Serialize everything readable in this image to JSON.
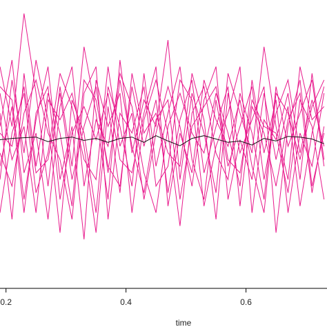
{
  "chart_data": {
    "type": "line",
    "title": "",
    "xlabel": "time",
    "ylabel": "",
    "xlim": [
      0.19,
      0.735
    ],
    "ylim": [
      -1.0,
      1.0
    ],
    "x_ticks": [
      {
        "value": 0.2,
        "label": "0.2"
      },
      {
        "value": 0.4,
        "label": "0.4"
      },
      {
        "value": 0.6,
        "label": "0.6"
      }
    ],
    "grid": false,
    "legend": "none",
    "colors": {
      "trajectories": "#e8198c",
      "mean": "#111111",
      "axis": "#000000"
    },
    "x": [
      0.19,
      0.21,
      0.23,
      0.25,
      0.27,
      0.29,
      0.31,
      0.33,
      0.35,
      0.37,
      0.39,
      0.41,
      0.43,
      0.45,
      0.47,
      0.49,
      0.51,
      0.53,
      0.55,
      0.57,
      0.59,
      0.61,
      0.63,
      0.65,
      0.67,
      0.69,
      0.71,
      0.73
    ],
    "series": [
      {
        "values": [
          0.55,
          0.1,
          0.95,
          0.35,
          -0.35,
          0.4,
          -0.2,
          0.7,
          0.2,
          -0.45,
          0.6,
          -0.1,
          0.3,
          0.1,
          0.75,
          -0.3,
          0.35,
          0.05,
          -0.4,
          0.5,
          0.2,
          -0.1,
          0.7,
          0.1,
          -0.3,
          0.55,
          0.15,
          0.25
        ]
      },
      {
        "values": [
          -0.3,
          0.45,
          -0.1,
          0.6,
          0.15,
          -0.7,
          0.3,
          0.05,
          -0.55,
          0.4,
          0.1,
          -0.35,
          0.5,
          -0.2,
          0.2,
          0.55,
          -0.15,
          -0.45,
          0.3,
          -0.2,
          0.1,
          0.4,
          -0.3,
          0.2,
          0.45,
          -0.1,
          0.3,
          -0.05
        ]
      },
      {
        "values": [
          0.2,
          -0.6,
          0.5,
          -0.2,
          0.35,
          0.05,
          -0.5,
          0.45,
          0.3,
          -0.2,
          -0.35,
          0.4,
          -0.05,
          0.3,
          -0.4,
          0.15,
          0.45,
          -0.25,
          0.1,
          0.4,
          -0.5,
          0.25,
          0.05,
          -0.35,
          0.15,
          0.35,
          -0.4,
          0.1
        ]
      },
      {
        "values": [
          0.4,
          0.3,
          -0.45,
          0.15,
          0.55,
          -0.3,
          0.1,
          -0.75,
          0.45,
          0.1,
          0.35,
          -0.55,
          0.15,
          0.45,
          0.05,
          -0.65,
          0.2,
          0.4,
          -0.1,
          -0.3,
          0.35,
          0.05,
          -0.45,
          0.4,
          -0.05,
          0.2,
          0.45,
          -0.2
        ]
      },
      {
        "values": [
          -0.55,
          0.05,
          0.35,
          -0.4,
          -0.1,
          0.5,
          0.25,
          -0.15,
          -0.3,
          0.55,
          -0.05,
          0.2,
          -0.45,
          0.05,
          0.4,
          0.1,
          -0.35,
          0.3,
          0.55,
          -0.45,
          0.0,
          -0.3,
          0.35,
          -0.15,
          0.25,
          -0.5,
          0.05,
          0.4
        ]
      },
      {
        "values": [
          0.1,
          0.6,
          -0.25,
          0.05,
          -0.6,
          0.25,
          0.55,
          -0.35,
          0.15,
          -0.05,
          0.5,
          0.25,
          -0.25,
          -0.55,
          0.1,
          0.35,
          0.05,
          -0.1,
          0.35,
          0.05,
          -0.35,
          0.45,
          -0.1,
          0.3,
          -0.55,
          0.05,
          -0.2,
          0.35
        ]
      },
      {
        "values": [
          -0.1,
          -0.35,
          0.2,
          0.45,
          0.05,
          -0.15,
          -0.6,
          0.35,
          0.55,
          -0.6,
          0.2,
          0.05,
          0.4,
          -0.35,
          -0.2,
          0.45,
          0.3,
          -0.5,
          -0.05,
          0.2,
          0.55,
          -0.55,
          0.15,
          0.0,
          0.35,
          -0.3,
          0.5,
          -0.15
        ]
      },
      {
        "values": [
          0.35,
          -0.15,
          0.1,
          -0.55,
          0.3,
          0.15,
          0.35,
          -0.05,
          -0.7,
          0.25,
          -0.4,
          0.5,
          0.05,
          0.2,
          -0.1,
          -0.2,
          0.5,
          0.15,
          -0.6,
          0.35,
          -0.1,
          0.15,
          0.4,
          -0.7,
          0.1,
          0.45,
          -0.35,
          0.05
        ]
      },
      {
        "values": [
          -0.2,
          0.25,
          -0.55,
          0.2,
          0.4,
          -0.45,
          0.05,
          0.25,
          0.0,
          0.35,
          -0.15,
          -0.25,
          0.2,
          0.55,
          -0.5,
          0.05,
          -0.25,
          0.45,
          0.15,
          -0.05,
          0.3,
          -0.2,
          -0.55,
          0.35,
          0.2,
          -0.15,
          0.25,
          0.45
        ]
      },
      {
        "values": [
          0.05,
          -0.05,
          0.4,
          -0.25,
          -0.15,
          0.35,
          -0.3,
          0.1,
          0.4,
          -0.25,
          0.45,
          -0.05,
          -0.4,
          0.15,
          0.3,
          -0.45,
          0.1,
          0.25,
          0.4,
          -0.15,
          -0.25,
          0.3,
          0.1,
          0.05,
          -0.4,
          0.3,
          0.1,
          -0.45
        ]
      }
    ],
    "mean_values": [
      0.0,
      0.01,
      0.015,
      0.02,
      -0.015,
      0.01,
      0.02,
      -0.005,
      0.01,
      -0.02,
      0.01,
      0.02,
      -0.02,
      0.03,
      -0.01,
      -0.045,
      0.01,
      0.03,
      0.005,
      -0.02,
      -0.01,
      -0.04,
      0.01,
      -0.01,
      0.025,
      0.02,
      0.005,
      -0.03
    ]
  }
}
